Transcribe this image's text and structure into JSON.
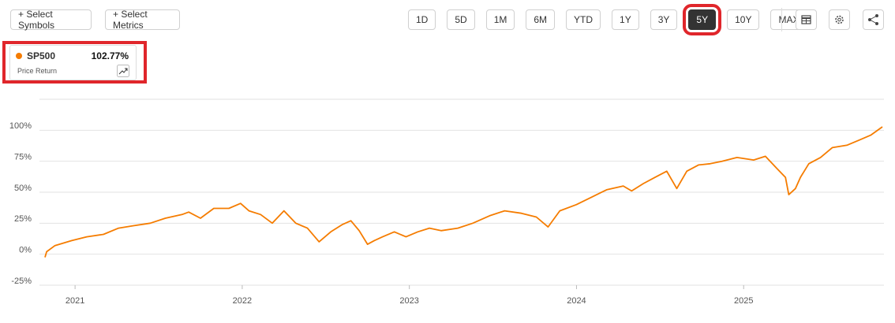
{
  "toolbar": {
    "symbols_button": "+ Select Symbols",
    "metrics_button": "+ Select Metrics",
    "ranges": [
      "1D",
      "5D",
      "1M",
      "6M",
      "YTD",
      "1Y",
      "3Y",
      "5Y",
      "10Y",
      "MAX"
    ],
    "selected_range": 7
  },
  "legend": {
    "value": "102.77%",
    "metric": "Price Return"
  },
  "chart_data": {
    "type": "line",
    "x": [
      2020.82,
      2020.83,
      2020.88,
      2020.98,
      2021.07,
      2021.17,
      2021.26,
      2021.35,
      2021.45,
      2021.54,
      2021.64,
      2021.68,
      2021.75,
      2021.83,
      2021.92,
      2021.99,
      2022.04,
      2022.11,
      2022.18,
      2022.25,
      2022.32,
      2022.39,
      2022.46,
      2022.53,
      2022.6,
      2022.65,
      2022.7,
      2022.75,
      2022.79,
      2022.84,
      2022.91,
      2022.98,
      2023.05,
      2023.12,
      2023.19,
      2023.29,
      2023.38,
      2023.48,
      2023.57,
      2023.67,
      2023.76,
      2023.83,
      2023.9,
      2024.0,
      2024.09,
      2024.18,
      2024.28,
      2024.33,
      2024.4,
      2024.47,
      2024.54,
      2024.6,
      2024.66,
      2024.73,
      2024.8,
      2024.87,
      2024.96,
      2025.06,
      2025.13,
      2025.2,
      2025.25,
      2025.27,
      2025.31,
      2025.34,
      2025.39,
      2025.46,
      2025.53,
      2025.62,
      2025.69,
      2025.76,
      2025.83
    ],
    "series": [
      {
        "name": "SP500",
        "color": "#f57c00",
        "values": [
          -2.5,
          2,
          7,
          11,
          14,
          16,
          21,
          23,
          25,
          29,
          32,
          34,
          29,
          37,
          37,
          41,
          35,
          32,
          25,
          35,
          25,
          21,
          10,
          18,
          24,
          27,
          19,
          8,
          11,
          14,
          18,
          14,
          18,
          21,
          19,
          21,
          25,
          31,
          35,
          33,
          30,
          22,
          35,
          40,
          46,
          52,
          55,
          51,
          57,
          62,
          67,
          53,
          67,
          72,
          73,
          75,
          78,
          76,
          79,
          69,
          62,
          48,
          53,
          62,
          73,
          78,
          86,
          88,
          92,
          96,
          102.77
        ]
      }
    ],
    "xlim": [
      2020.82,
      2025.83
    ],
    "xticks": [
      2021,
      2022,
      2023,
      2024,
      2025
    ],
    "ylim": [
      -25,
      125
    ],
    "yticks": [
      {
        "value": -25,
        "label": "-25%"
      },
      {
        "value": 0,
        "label": "0%"
      },
      {
        "value": 25,
        "label": "25%"
      },
      {
        "value": 50,
        "label": "50%"
      },
      {
        "value": 75,
        "label": "75%"
      },
      {
        "value": 100,
        "label": "100%"
      }
    ],
    "grid": true
  }
}
